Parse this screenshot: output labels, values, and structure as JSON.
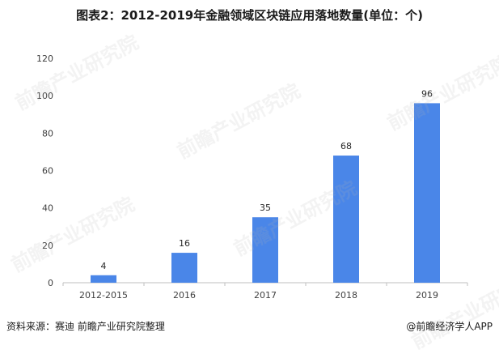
{
  "title": "图表2：2012-2019年金融领域区块链应用落地数量(单位：个)",
  "source": "资料来源：赛迪 前瞻产业研究院整理",
  "credit": "@前瞻经济学人APP",
  "watermark": "前瞻产业研究院",
  "colors": {
    "bar": "#4a86e8",
    "axis": "#bfbfbf",
    "tick_text": "#404040"
  },
  "chart_data": {
    "type": "bar",
    "categories": [
      "2012-2015",
      "2016",
      "2017",
      "2018",
      "2019"
    ],
    "values": [
      4,
      16,
      35,
      68,
      96
    ],
    "data_labels": [
      "4",
      "16",
      "35",
      "68",
      "96"
    ],
    "ylim": [
      0,
      120
    ],
    "yticks": [
      0,
      20,
      40,
      60,
      80,
      100,
      120
    ],
    "ytick_labels": [
      "0",
      "20",
      "40",
      "60",
      "80",
      "100",
      "120"
    ],
    "grid": false,
    "legend": "none"
  }
}
